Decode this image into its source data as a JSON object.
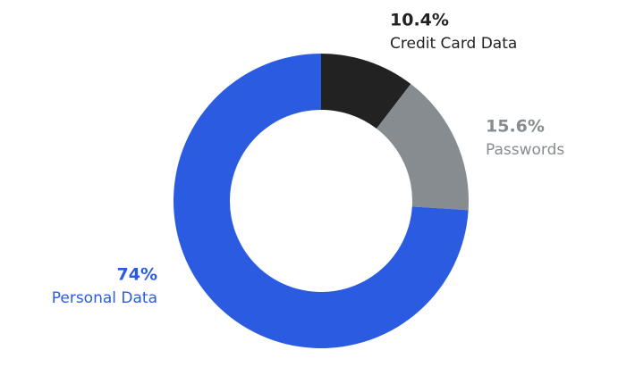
{
  "chart_data": {
    "type": "donut",
    "categories": [
      "Credit Card Data",
      "Passwords",
      "Personal Data"
    ],
    "values": [
      10.4,
      15.6,
      74
    ],
    "value_labels": [
      "10.4%",
      "15.6%",
      "74%"
    ],
    "colors": [
      "#222222",
      "#868c90",
      "#2b5be0"
    ]
  }
}
